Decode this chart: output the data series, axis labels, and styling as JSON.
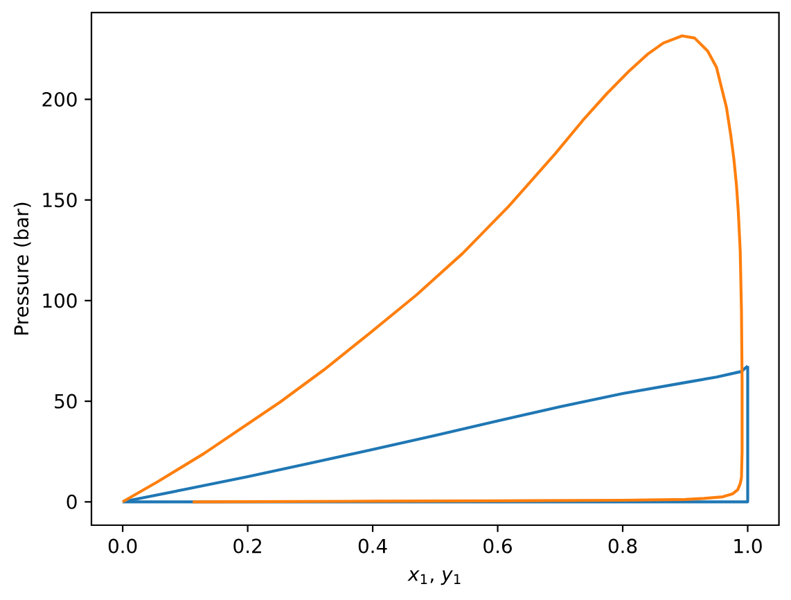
{
  "chart_data": {
    "type": "line",
    "xlabel": "*x*$_{1}$, *y*$_{1}$",
    "ylabel": "Pressure (bar)",
    "xlim": [
      -0.05,
      1.05
    ],
    "ylim": [
      -11.6,
      243.2
    ],
    "xticks": [
      {
        "value": 0,
        "label": "0.0"
      },
      {
        "value": 0.2,
        "label": "0.2"
      },
      {
        "value": 0.4,
        "label": "0.4"
      },
      {
        "value": 0.6,
        "label": "0.6"
      },
      {
        "value": 0.8,
        "label": "0.8"
      },
      {
        "value": 1,
        "label": "1.0"
      }
    ],
    "yticks": [
      0,
      50,
      100,
      150,
      200
    ],
    "series": [
      {
        "color": "#1f77b4",
        "x": [
          0,
          0.1,
          0.2,
          0.3,
          0.4,
          0.5,
          0.6,
          0.7,
          0.8,
          0.9,
          0.95,
          0.99,
          1.0
        ],
        "values": [
          0,
          6.2,
          12.5,
          19.2,
          26,
          33,
          40.2,
          47.3,
          53.8,
          59.3,
          62,
          64.8,
          67.5
        ]
      },
      {
        "color": "#1f77b4",
        "x": [
          1.0,
          1.0,
          0
        ],
        "values": [
          67.5,
          0,
          0
        ]
      },
      {
        "color": "#ff7f0e",
        "x": [
          0,
          0.056,
          0.13,
          0.204,
          0.252,
          0.322,
          0.396,
          0.47,
          0.544,
          0.618,
          0.692,
          0.736,
          0.775,
          0.81,
          0.84,
          0.865,
          0.895,
          0.915,
          0.936,
          0.95,
          0.958,
          0.966,
          0.973,
          0.978,
          0.982,
          0.985,
          0.988,
          0.99,
          0.991,
          0.991,
          0.99,
          0.988,
          0.984,
          0.976,
          0.96,
          0.93,
          0.9,
          0.8,
          0.6,
          0.4,
          0.112
        ],
        "values": [
          0,
          10,
          24,
          39.5,
          49.6,
          65.6,
          84,
          102.8,
          123.5,
          147,
          173,
          189.5,
          203,
          214,
          222.5,
          228,
          231.6,
          230.5,
          224,
          216,
          206,
          196,
          182,
          170,
          157.5,
          144,
          125,
          95,
          60,
          25,
          12,
          9,
          6,
          4,
          2.5,
          1.7,
          1.2,
          0.8,
          0.5,
          0.3,
          0
        ]
      }
    ]
  }
}
